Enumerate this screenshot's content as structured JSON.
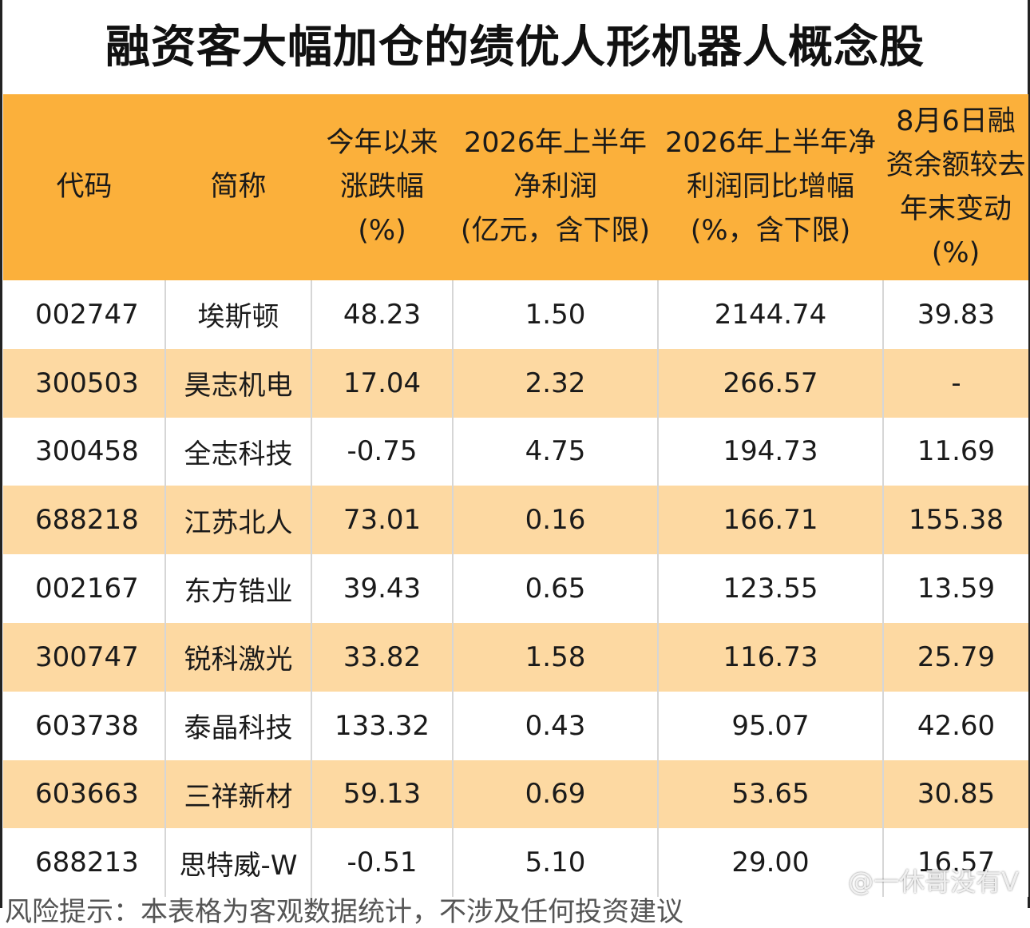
{
  "title": "融资客大幅加仓的绩优人形机器人概念股",
  "colors": {
    "header_bg": "#fbb03b",
    "stripe_bg": "#fdd9a2"
  },
  "table": {
    "headers": [
      [
        "代码"
      ],
      [
        "简称"
      ],
      [
        "今年以来",
        "涨跌幅",
        "(%)"
      ],
      [
        "2026年上半年",
        "净利润",
        "(亿元，含下限)"
      ],
      [
        "2026年上半年净",
        "利润同比增幅",
        "(%，含下限)"
      ],
      [
        "8月6日融",
        "资余额较去",
        "年末变动",
        "(%)"
      ]
    ],
    "rows": [
      [
        "002747",
        "埃斯顿",
        "48.23",
        "1.50",
        "2144.74",
        "39.83"
      ],
      [
        "300503",
        "昊志机电",
        "17.04",
        "2.32",
        "266.57",
        "-"
      ],
      [
        "300458",
        "全志科技",
        "-0.75",
        "4.75",
        "194.73",
        "11.69"
      ],
      [
        "688218",
        "江苏北人",
        "73.01",
        "0.16",
        "166.71",
        "155.38"
      ],
      [
        "002167",
        "东方锆业",
        "39.43",
        "0.65",
        "123.55",
        "13.59"
      ],
      [
        "300747",
        "锐科激光",
        "33.82",
        "1.58",
        "116.73",
        "25.79"
      ],
      [
        "603738",
        "泰晶科技",
        "133.32",
        "0.43",
        "95.07",
        "42.60"
      ],
      [
        "603663",
        "三祥新材",
        "59.13",
        "0.69",
        "53.65",
        "30.85"
      ],
      [
        "688213",
        "思特威-W",
        "-0.51",
        "5.10",
        "29.00",
        "16.57"
      ]
    ]
  },
  "footer": {
    "note": "风险提示：本表格为客观数据统计，不涉及任何投资建议",
    "watermark": "@一休哥没有V",
    "watermark_icon": "weibo-icon"
  }
}
